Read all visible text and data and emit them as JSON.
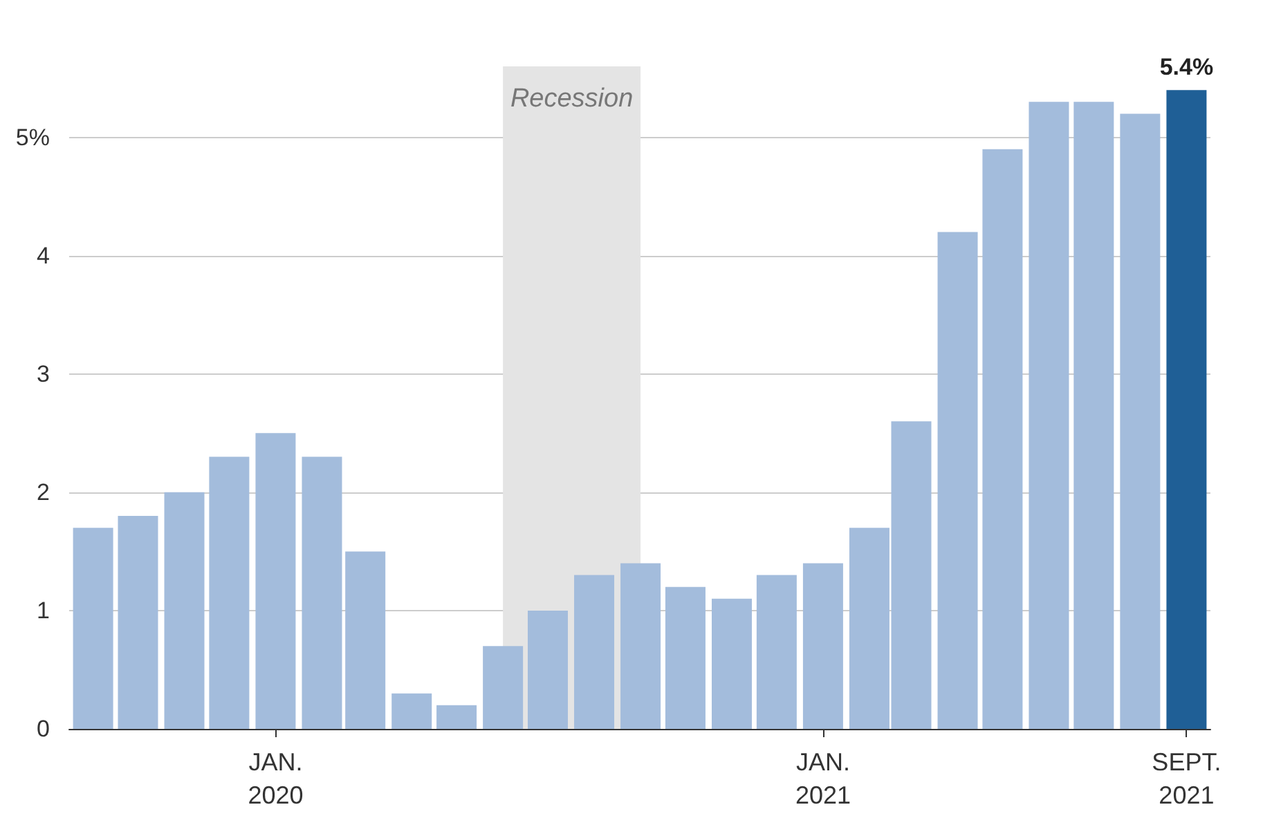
{
  "chart_data": {
    "type": "bar",
    "x": [
      "2019-09",
      "2019-10",
      "2019-11",
      "2019-12",
      "2020-01",
      "2020-02",
      "2020-03",
      "2020-04",
      "2020-05",
      "2020-06",
      "2020-07",
      "2020-08",
      "2020-09",
      "2020-10",
      "2020-11",
      "2020-12",
      "2021-01",
      "2021-02",
      "2021-03",
      "2021-04",
      "2021-05",
      "2021-06",
      "2021-07",
      "2021-08",
      "2021-09"
    ],
    "values": [
      1.7,
      1.8,
      2.0,
      2.3,
      2.5,
      2.3,
      1.5,
      0.3,
      0.2,
      0.7,
      1.0,
      1.3,
      1.4,
      1.2,
      1.1,
      1.3,
      1.4,
      1.7,
      2.6,
      4.2,
      4.9,
      5.3,
      5.3,
      5.2,
      5.4
    ],
    "colors": [
      "#a3bcdc",
      "#a3bcdc",
      "#a3bcdc",
      "#a3bcdc",
      "#a3bcdc",
      "#a3bcdc",
      "#a3bcdc",
      "#a3bcdc",
      "#a3bcdc",
      "#a3bcdc",
      "#a3bcdc",
      "#a3bcdc",
      "#a3bcdc",
      "#a3bcdc",
      "#a3bcdc",
      "#a3bcdc",
      "#a3bcdc",
      "#a3bcdc",
      "#a3bcdc",
      "#a3bcdc",
      "#a3bcdc",
      "#a3bcdc",
      "#a3bcdc",
      "#a3bcdc",
      "#1f5f96"
    ],
    "xlim": [
      "2019-08-16",
      "2021-09-17"
    ],
    "xticks": [
      {
        "value": "2020-01",
        "label": "JAN.\n2020"
      },
      {
        "value": "2021-01",
        "label": "JAN.\n2021"
      },
      {
        "value": "2021-09",
        "label": "SEPT.\n2021"
      }
    ],
    "ylim": [
      0,
      5.6
    ],
    "yticks": [
      0,
      1,
      2,
      3,
      4,
      {
        "value": 5,
        "label": "5%"
      }
    ],
    "grid": "y",
    "bands": [
      {
        "axis": "x",
        "from": "2020-06",
        "to": "2020-09",
        "label": "Recession",
        "color": "#e4e4e4"
      }
    ],
    "annotations": [
      {
        "text": "5.4%",
        "x": "2021-09",
        "y": 5.4
      }
    ]
  }
}
